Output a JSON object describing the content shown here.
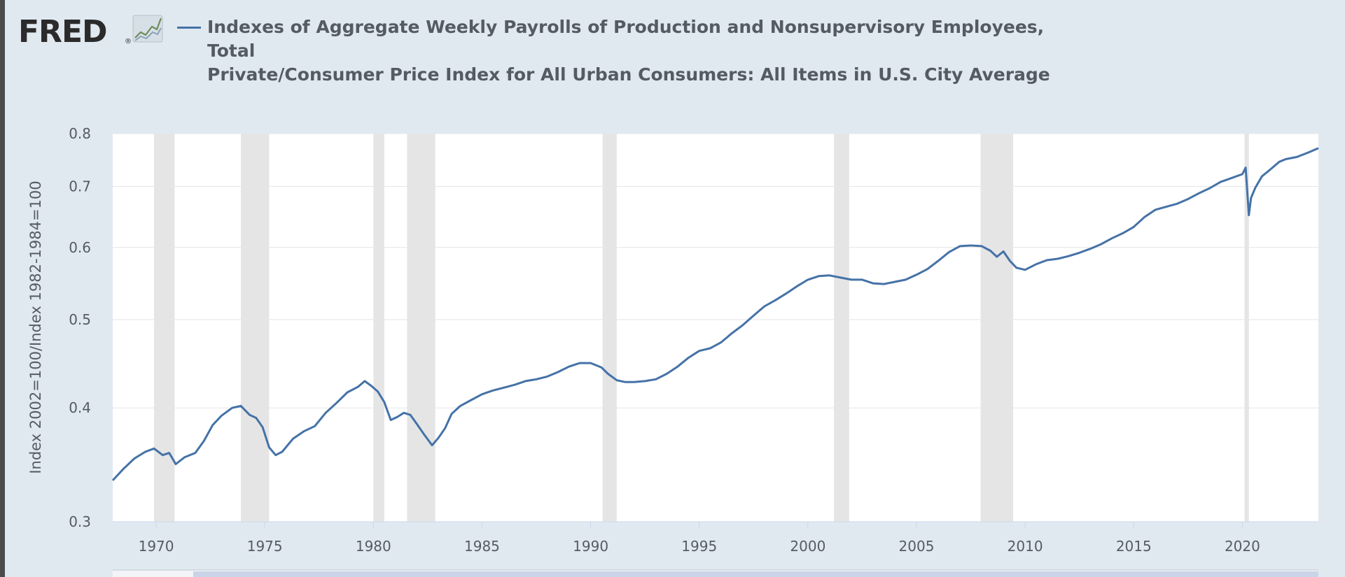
{
  "header": {
    "logo_text": "FRED",
    "title_line1": "Indexes of Aggregate Weekly Payrolls of Production and Nonsupervisory Employees, Total",
    "title_line2": "Private/Consumer Price Index for All Urban Consumers: All Items in U.S. City Average"
  },
  "colors": {
    "series": "#4572a7",
    "background": "#e1e9f0",
    "plot": "#ffffff",
    "recession": "#e5e5e5",
    "text": "#555b63"
  },
  "chart_data": {
    "type": "line",
    "title": "Indexes of Aggregate Weekly Payrolls of Production and Nonsupervisory Employees, Total Private/Consumer Price Index for All Urban Consumers: All Items in U.S. City Average",
    "ylabel": "Index 2002=100/Index 1982-1984=100",
    "xlabel": "",
    "y_scale": "log",
    "xlim": [
      1968,
      2023.5
    ],
    "ylim": [
      0.3,
      0.8
    ],
    "y_ticks": [
      0.3,
      0.4,
      0.5,
      0.6,
      0.7,
      0.8
    ],
    "y_tick_labels": [
      "0.3",
      "0.4",
      "0.5",
      "0.6",
      "0.7",
      "0.8"
    ],
    "x_ticks": [
      1970,
      1975,
      1980,
      1985,
      1990,
      1995,
      2000,
      2005,
      2010,
      2015,
      2020
    ],
    "x_tick_labels": [
      "1970",
      "1975",
      "1980",
      "1985",
      "1990",
      "1995",
      "2000",
      "2005",
      "2010",
      "2015",
      "2020"
    ],
    "grid": "horizontal",
    "recessions": [
      [
        1969.9,
        1970.85
      ],
      [
        1973.9,
        1975.2
      ],
      [
        1980.0,
        1980.5
      ],
      [
        1981.55,
        1982.85
      ],
      [
        1990.55,
        1991.2
      ],
      [
        2001.2,
        2001.9
      ],
      [
        2007.95,
        2009.45
      ],
      [
        2020.1,
        2020.3
      ]
    ],
    "series": [
      {
        "name": "Indexes of Aggregate Weekly Payrolls of Production and Nonsupervisory Employees, Total Private/Consumer Price Index for All Urban Consumers: All Items in U.S. City Average",
        "x": [
          1968.0,
          1968.5,
          1969.0,
          1969.5,
          1969.9,
          1970.3,
          1970.6,
          1970.9,
          1971.3,
          1971.8,
          1972.2,
          1972.6,
          1973.0,
          1973.5,
          1973.9,
          1974.3,
          1974.6,
          1974.9,
          1975.2,
          1975.5,
          1975.8,
          1976.3,
          1976.8,
          1977.3,
          1977.8,
          1978.3,
          1978.8,
          1979.3,
          1979.6,
          1979.9,
          1980.2,
          1980.5,
          1980.8,
          1981.1,
          1981.4,
          1981.7,
          1982.0,
          1982.3,
          1982.7,
          1983.0,
          1983.3,
          1983.6,
          1984.0,
          1984.5,
          1985.0,
          1985.5,
          1986.0,
          1986.5,
          1987.0,
          1987.5,
          1988.0,
          1988.5,
          1989.0,
          1989.5,
          1990.0,
          1990.5,
          1990.8,
          1991.2,
          1991.6,
          1992.0,
          1992.5,
          1993.0,
          1993.5,
          1994.0,
          1994.5,
          1995.0,
          1995.5,
          1996.0,
          1996.5,
          1997.0,
          1997.5,
          1998.0,
          1998.5,
          1999.0,
          1999.5,
          2000.0,
          2000.5,
          2001.0,
          2001.5,
          2002.0,
          2002.5,
          2003.0,
          2003.5,
          2004.0,
          2004.5,
          2005.0,
          2005.5,
          2006.0,
          2006.5,
          2007.0,
          2007.5,
          2008.0,
          2008.4,
          2008.7,
          2009.0,
          2009.3,
          2009.6,
          2010.0,
          2010.5,
          2011.0,
          2011.5,
          2012.0,
          2012.5,
          2013.0,
          2013.5,
          2014.0,
          2014.5,
          2015.0,
          2015.5,
          2016.0,
          2016.5,
          2017.0,
          2017.5,
          2018.0,
          2018.5,
          2019.0,
          2019.5,
          2020.0,
          2020.15,
          2020.3,
          2020.4,
          2020.6,
          2020.9,
          2021.3,
          2021.7,
          2022.0,
          2022.5,
          2023.0,
          2023.5
        ],
        "y": [
          0.333,
          0.343,
          0.352,
          0.358,
          0.361,
          0.355,
          0.357,
          0.347,
          0.353,
          0.357,
          0.368,
          0.383,
          0.392,
          0.4,
          0.402,
          0.393,
          0.39,
          0.381,
          0.362,
          0.355,
          0.358,
          0.37,
          0.377,
          0.382,
          0.395,
          0.405,
          0.416,
          0.422,
          0.428,
          0.423,
          0.417,
          0.406,
          0.388,
          0.391,
          0.395,
          0.393,
          0.384,
          0.375,
          0.364,
          0.371,
          0.38,
          0.394,
          0.402,
          0.408,
          0.414,
          0.418,
          0.421,
          0.424,
          0.428,
          0.43,
          0.433,
          0.438,
          0.444,
          0.448,
          0.448,
          0.443,
          0.436,
          0.429,
          0.427,
          0.427,
          0.428,
          0.43,
          0.436,
          0.444,
          0.454,
          0.462,
          0.465,
          0.472,
          0.483,
          0.493,
          0.505,
          0.517,
          0.525,
          0.534,
          0.544,
          0.553,
          0.558,
          0.559,
          0.556,
          0.553,
          0.553,
          0.548,
          0.547,
          0.55,
          0.553,
          0.56,
          0.568,
          0.58,
          0.593,
          0.602,
          0.603,
          0.602,
          0.595,
          0.586,
          0.594,
          0.58,
          0.57,
          0.567,
          0.575,
          0.581,
          0.583,
          0.587,
          0.592,
          0.598,
          0.605,
          0.614,
          0.622,
          0.632,
          0.648,
          0.66,
          0.665,
          0.67,
          0.678,
          0.688,
          0.697,
          0.708,
          0.715,
          0.722,
          0.734,
          0.651,
          0.68,
          0.698,
          0.718,
          0.731,
          0.745,
          0.75,
          0.754,
          0.762,
          0.771
        ]
      }
    ]
  }
}
